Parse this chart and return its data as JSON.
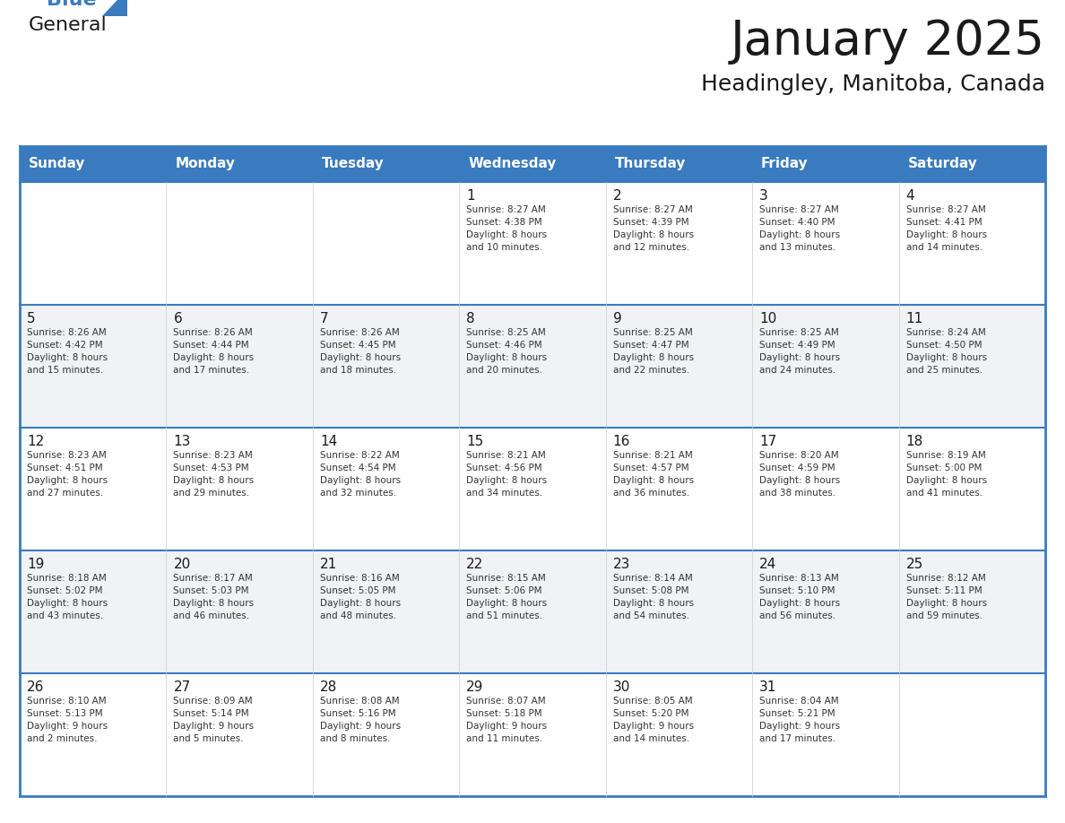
{
  "title": "January 2025",
  "subtitle": "Headingley, Manitoba, Canada",
  "days_of_week": [
    "Sunday",
    "Monday",
    "Tuesday",
    "Wednesday",
    "Thursday",
    "Friday",
    "Saturday"
  ],
  "header_bg": "#3a7bbf",
  "header_text": "#ffffff",
  "border_color": "#3a7bbf",
  "cell_divider_color": "#3a7bbf",
  "day_num_color": "#1a1a1a",
  "cell_text_color": "#333333",
  "cell_bg": "#ffffff",
  "cell_bg_alt": "#f0f2f5",
  "title_color": "#1a1a1a",
  "subtitle_color": "#1a1a1a",
  "logo_blue_color": "#3a7bbf",
  "weeks": [
    [
      {
        "day": null,
        "info": ""
      },
      {
        "day": null,
        "info": ""
      },
      {
        "day": null,
        "info": ""
      },
      {
        "day": 1,
        "info": "Sunrise: 8:27 AM\nSunset: 4:38 PM\nDaylight: 8 hours\nand 10 minutes."
      },
      {
        "day": 2,
        "info": "Sunrise: 8:27 AM\nSunset: 4:39 PM\nDaylight: 8 hours\nand 12 minutes."
      },
      {
        "day": 3,
        "info": "Sunrise: 8:27 AM\nSunset: 4:40 PM\nDaylight: 8 hours\nand 13 minutes."
      },
      {
        "day": 4,
        "info": "Sunrise: 8:27 AM\nSunset: 4:41 PM\nDaylight: 8 hours\nand 14 minutes."
      }
    ],
    [
      {
        "day": 5,
        "info": "Sunrise: 8:26 AM\nSunset: 4:42 PM\nDaylight: 8 hours\nand 15 minutes."
      },
      {
        "day": 6,
        "info": "Sunrise: 8:26 AM\nSunset: 4:44 PM\nDaylight: 8 hours\nand 17 minutes."
      },
      {
        "day": 7,
        "info": "Sunrise: 8:26 AM\nSunset: 4:45 PM\nDaylight: 8 hours\nand 18 minutes."
      },
      {
        "day": 8,
        "info": "Sunrise: 8:25 AM\nSunset: 4:46 PM\nDaylight: 8 hours\nand 20 minutes."
      },
      {
        "day": 9,
        "info": "Sunrise: 8:25 AM\nSunset: 4:47 PM\nDaylight: 8 hours\nand 22 minutes."
      },
      {
        "day": 10,
        "info": "Sunrise: 8:25 AM\nSunset: 4:49 PM\nDaylight: 8 hours\nand 24 minutes."
      },
      {
        "day": 11,
        "info": "Sunrise: 8:24 AM\nSunset: 4:50 PM\nDaylight: 8 hours\nand 25 minutes."
      }
    ],
    [
      {
        "day": 12,
        "info": "Sunrise: 8:23 AM\nSunset: 4:51 PM\nDaylight: 8 hours\nand 27 minutes."
      },
      {
        "day": 13,
        "info": "Sunrise: 8:23 AM\nSunset: 4:53 PM\nDaylight: 8 hours\nand 29 minutes."
      },
      {
        "day": 14,
        "info": "Sunrise: 8:22 AM\nSunset: 4:54 PM\nDaylight: 8 hours\nand 32 minutes."
      },
      {
        "day": 15,
        "info": "Sunrise: 8:21 AM\nSunset: 4:56 PM\nDaylight: 8 hours\nand 34 minutes."
      },
      {
        "day": 16,
        "info": "Sunrise: 8:21 AM\nSunset: 4:57 PM\nDaylight: 8 hours\nand 36 minutes."
      },
      {
        "day": 17,
        "info": "Sunrise: 8:20 AM\nSunset: 4:59 PM\nDaylight: 8 hours\nand 38 minutes."
      },
      {
        "day": 18,
        "info": "Sunrise: 8:19 AM\nSunset: 5:00 PM\nDaylight: 8 hours\nand 41 minutes."
      }
    ],
    [
      {
        "day": 19,
        "info": "Sunrise: 8:18 AM\nSunset: 5:02 PM\nDaylight: 8 hours\nand 43 minutes."
      },
      {
        "day": 20,
        "info": "Sunrise: 8:17 AM\nSunset: 5:03 PM\nDaylight: 8 hours\nand 46 minutes."
      },
      {
        "day": 21,
        "info": "Sunrise: 8:16 AM\nSunset: 5:05 PM\nDaylight: 8 hours\nand 48 minutes."
      },
      {
        "day": 22,
        "info": "Sunrise: 8:15 AM\nSunset: 5:06 PM\nDaylight: 8 hours\nand 51 minutes."
      },
      {
        "day": 23,
        "info": "Sunrise: 8:14 AM\nSunset: 5:08 PM\nDaylight: 8 hours\nand 54 minutes."
      },
      {
        "day": 24,
        "info": "Sunrise: 8:13 AM\nSunset: 5:10 PM\nDaylight: 8 hours\nand 56 minutes."
      },
      {
        "day": 25,
        "info": "Sunrise: 8:12 AM\nSunset: 5:11 PM\nDaylight: 8 hours\nand 59 minutes."
      }
    ],
    [
      {
        "day": 26,
        "info": "Sunrise: 8:10 AM\nSunset: 5:13 PM\nDaylight: 9 hours\nand 2 minutes."
      },
      {
        "day": 27,
        "info": "Sunrise: 8:09 AM\nSunset: 5:14 PM\nDaylight: 9 hours\nand 5 minutes."
      },
      {
        "day": 28,
        "info": "Sunrise: 8:08 AM\nSunset: 5:16 PM\nDaylight: 9 hours\nand 8 minutes."
      },
      {
        "day": 29,
        "info": "Sunrise: 8:07 AM\nSunset: 5:18 PM\nDaylight: 9 hours\nand 11 minutes."
      },
      {
        "day": 30,
        "info": "Sunrise: 8:05 AM\nSunset: 5:20 PM\nDaylight: 9 hours\nand 14 minutes."
      },
      {
        "day": 31,
        "info": "Sunrise: 8:04 AM\nSunset: 5:21 PM\nDaylight: 9 hours\nand 17 minutes."
      },
      {
        "day": null,
        "info": ""
      }
    ]
  ]
}
